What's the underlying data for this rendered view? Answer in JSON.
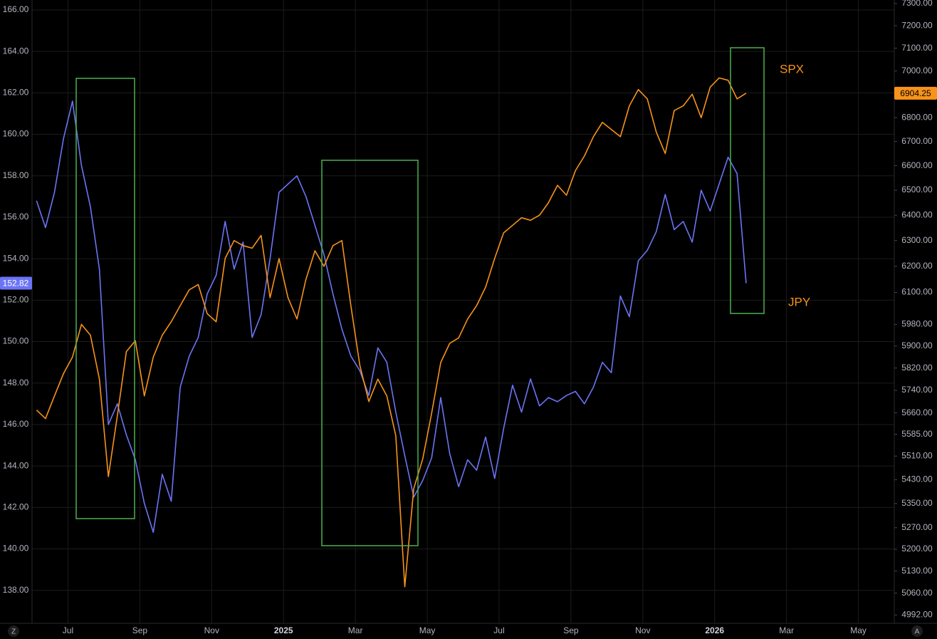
{
  "chart_data": {
    "type": "line",
    "x": [
      "2024-06",
      "2024-06",
      "2024-06",
      "2024-06",
      "2024-07",
      "2024-07",
      "2024-07",
      "2024-07",
      "2024-08",
      "2024-08",
      "2024-08",
      "2024-08",
      "2024-09",
      "2024-09",
      "2024-09",
      "2024-09",
      "2024-10",
      "2024-10",
      "2024-10",
      "2024-10",
      "2024-11",
      "2024-11",
      "2024-11",
      "2024-11",
      "2024-12",
      "2024-12",
      "2024-12",
      "2024-12",
      "2025-01",
      "2025-01",
      "2025-01",
      "2025-01",
      "2025-02",
      "2025-02",
      "2025-02",
      "2025-02",
      "2025-03",
      "2025-03",
      "2025-03",
      "2025-03",
      "2025-04",
      "2025-04",
      "2025-04",
      "2025-04",
      "2025-05",
      "2025-05",
      "2025-05",
      "2025-05",
      "2025-06",
      "2025-06",
      "2025-06",
      "2025-06",
      "2025-07",
      "2025-07",
      "2025-07",
      "2025-07",
      "2025-08",
      "2025-08",
      "2025-08",
      "2025-08",
      "2025-09",
      "2025-09",
      "2025-09",
      "2025-09",
      "2025-10",
      "2025-10",
      "2025-10",
      "2025-10",
      "2025-11",
      "2025-11",
      "2025-11",
      "2025-11",
      "2025-12",
      "2025-12",
      "2025-12",
      "2025-12",
      "2026-01",
      "2026-01",
      "2026-01",
      "2026-01"
    ],
    "xlim": [
      "2024-06",
      "2026-06"
    ],
    "xticks": [
      {
        "value": "2024-07",
        "label": "Jul"
      },
      {
        "value": "2024-09",
        "label": "Sep"
      },
      {
        "value": "2024-11",
        "label": "Nov"
      },
      {
        "value": "2025-01",
        "label": "2025"
      },
      {
        "value": "2025-03",
        "label": "Mar"
      },
      {
        "value": "2025-05",
        "label": "May"
      },
      {
        "value": "2025-07",
        "label": "Jul"
      },
      {
        "value": "2025-09",
        "label": "Sep"
      },
      {
        "value": "2025-11",
        "label": "Nov"
      },
      {
        "value": "2026-01",
        "label": "2026"
      },
      {
        "value": "2026-03",
        "label": "Mar"
      },
      {
        "value": "2026-05",
        "label": "May"
      }
    ],
    "ylim": [
      136.41,
      166.48
    ],
    "yticks": [
      {
        "value": 138,
        "label": "138.00"
      },
      {
        "value": 140,
        "label": "140.00"
      },
      {
        "value": 142,
        "label": "142.00"
      },
      {
        "value": 144,
        "label": "144.00"
      },
      {
        "value": 146,
        "label": "146.00"
      },
      {
        "value": 148,
        "label": "148.00"
      },
      {
        "value": 150,
        "label": "150.00"
      },
      {
        "value": 152,
        "label": "152.00"
      },
      {
        "value": 154,
        "label": "154.00"
      },
      {
        "value": 156,
        "label": "156.00"
      },
      {
        "value": 158,
        "label": "158.00"
      },
      {
        "value": 160,
        "label": "160.00"
      },
      {
        "value": 162,
        "label": "162.00"
      },
      {
        "value": 164,
        "label": "164.00"
      },
      {
        "value": 166,
        "label": "166.00"
      }
    ],
    "y2lim": [
      4966,
      7316
    ],
    "y2log": true,
    "y2ticks": [
      {
        "value": 4992,
        "label": "4992.00"
      },
      {
        "value": 5060,
        "label": "5060.00"
      },
      {
        "value": 5130,
        "label": "5130.00"
      },
      {
        "value": 5200,
        "label": "5200.00"
      },
      {
        "value": 5270,
        "label": "5270.00"
      },
      {
        "value": 5350,
        "label": "5350.00"
      },
      {
        "value": 5430,
        "label": "5430.00"
      },
      {
        "value": 5510,
        "label": "5510.00"
      },
      {
        "value": 5585,
        "label": "5585.00"
      },
      {
        "value": 5660,
        "label": "5660.00"
      },
      {
        "value": 5740,
        "label": "5740.00"
      },
      {
        "value": 5820,
        "label": "5820.00"
      },
      {
        "value": 5900,
        "label": "5900.00"
      },
      {
        "value": 5980,
        "label": "5980.00"
      },
      {
        "value": 6100,
        "label": "6100.00"
      },
      {
        "value": 6200,
        "label": "6200.00"
      },
      {
        "value": 6300,
        "label": "6300.00"
      },
      {
        "value": 6400,
        "label": "6400.00"
      },
      {
        "value": 6500,
        "label": "6500.00"
      },
      {
        "value": 6600,
        "label": "6600.00"
      },
      {
        "value": 6700,
        "label": "6700.00"
      },
      {
        "value": 6800,
        "label": "6800.00"
      },
      {
        "value": 6900,
        "label": "6900.00"
      },
      {
        "value": 7000,
        "label": "7000.00"
      },
      {
        "value": 7100,
        "label": "7100.00"
      },
      {
        "value": 7200,
        "label": "7200.00"
      },
      {
        "value": 7300,
        "label": "7300.00"
      }
    ],
    "grid": true,
    "series": [
      {
        "name": "JPY",
        "color": "#6b74f5",
        "label_color": "#f7931a",
        "last_value": 152.82,
        "values": [
          156.8,
          155.5,
          157.2,
          159.8,
          161.6,
          158.5,
          156.5,
          153.5,
          146.0,
          147.0,
          145.5,
          144.3,
          142.2,
          140.8,
          143.6,
          142.3,
          147.8,
          149.3,
          150.2,
          152.3,
          153.2,
          155.8,
          153.5,
          154.8,
          150.2,
          151.3,
          154.0,
          157.2,
          157.6,
          158.0,
          157.0,
          155.6,
          154.2,
          152.3,
          150.6,
          149.3,
          148.6,
          147.4,
          149.7,
          149.0,
          146.6,
          144.5,
          142.5,
          143.3,
          144.4,
          147.3,
          144.6,
          143.0,
          144.3,
          143.8,
          145.4,
          143.4,
          145.8,
          147.9,
          146.6,
          148.2,
          146.9,
          147.3,
          147.1,
          147.4,
          147.6,
          147.0,
          147.8,
          149.0,
          148.5,
          152.2,
          151.2,
          153.9,
          154.4,
          155.3,
          157.1,
          155.4,
          155.8,
          154.8,
          157.3,
          156.3,
          157.6,
          158.9,
          158.1,
          152.82
        ]
      },
      {
        "name": "SPX",
        "color": "#f7931a",
        "label_color": "#f7931a",
        "axis": "y2",
        "last_value": 6904.25,
        "values": [
          5670,
          5640,
          5720,
          5800,
          5860,
          5980,
          5940,
          5780,
          5440,
          5650,
          5880,
          5920,
          5720,
          5860,
          5940,
          5990,
          6050,
          6110,
          6130,
          6020,
          5990,
          6230,
          6300,
          6280,
          6270,
          6320,
          6080,
          6230,
          6080,
          6000,
          6150,
          6260,
          6200,
          6280,
          6300,
          6050,
          5830,
          5700,
          5780,
          5720,
          5580,
          5080,
          5400,
          5500,
          5660,
          5840,
          5910,
          5930,
          6000,
          6050,
          6120,
          6230,
          6330,
          6360,
          6390,
          6380,
          6400,
          6450,
          6520,
          6480,
          6580,
          6640,
          6720,
          6780,
          6750,
          6720,
          6850,
          6920,
          6880,
          6740,
          6650,
          6830,
          6850,
          6900,
          6800,
          6930,
          6970,
          6960,
          6880,
          6904.25
        ]
      }
    ]
  },
  "ui": {
    "left_button": "Z",
    "right_button": "A"
  }
}
